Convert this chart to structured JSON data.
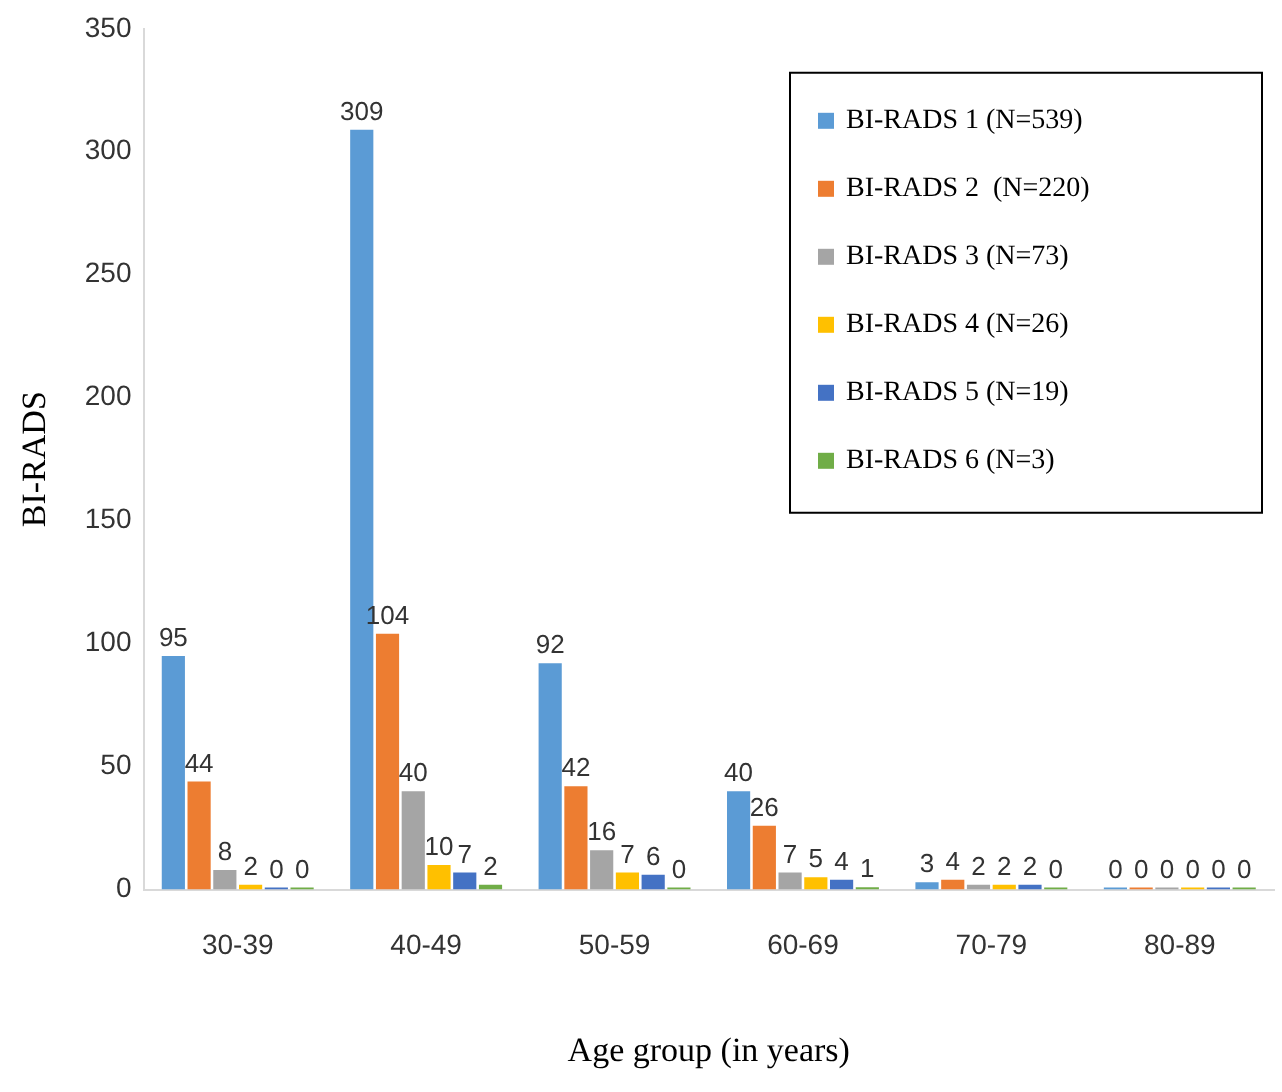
{
  "chart_data": {
    "type": "bar",
    "xlabel": "Age group (in years)",
    "ylabel": "BI-RADS",
    "categories": [
      "30-39",
      "40-49",
      "50-59",
      "60-69",
      "70-79",
      "80-89"
    ],
    "series": [
      {
        "name": "BI-RADS 1 (N=539)",
        "color": "#5b9bd5",
        "values": [
          95,
          309,
          92,
          40,
          3,
          0
        ]
      },
      {
        "name": "BI-RADS 2  (N=220)",
        "color": "#ed7d31",
        "values": [
          44,
          104,
          42,
          26,
          4,
          0
        ]
      },
      {
        "name": "BI-RADS 3 (N=73)",
        "color": "#a5a5a5",
        "values": [
          8,
          40,
          16,
          7,
          2,
          0
        ]
      },
      {
        "name": "BI-RADS 4 (N=26)",
        "color": "#ffc000",
        "values": [
          2,
          10,
          7,
          5,
          2,
          0
        ]
      },
      {
        "name": "BI-RADS 5 (N=19)",
        "color": "#4472c4",
        "values": [
          0,
          7,
          6,
          4,
          2,
          0
        ]
      },
      {
        "name": "BI-RADS 6 (N=3)",
        "color": "#70ad47",
        "values": [
          0,
          2,
          0,
          1,
          0,
          0
        ]
      }
    ],
    "ylim": [
      0,
      350
    ],
    "yticks": [
      0,
      50,
      100,
      150,
      200,
      250,
      300,
      350
    ],
    "grid": false,
    "legend": "top right",
    "data_labels": true
  }
}
